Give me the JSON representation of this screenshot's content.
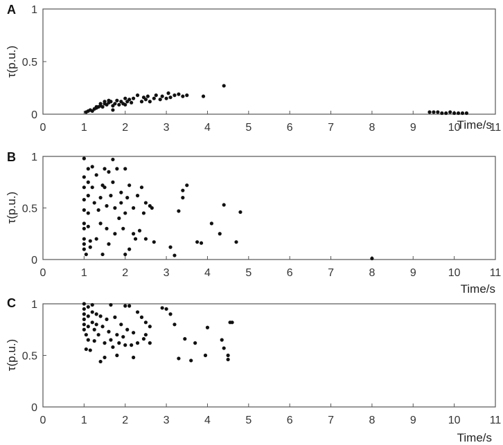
{
  "chart_data": [
    {
      "type": "scatter",
      "panel_label": "A",
      "ylabel": "τ(p.u.)",
      "xlabel": "Time/s",
      "xlim": [
        0,
        11
      ],
      "ylim": [
        0,
        1
      ],
      "xticks": [
        "0",
        "1",
        "2",
        "3",
        "4",
        "5",
        "6",
        "7",
        "8",
        "9",
        "10",
        "11"
      ],
      "yticks": [
        "0",
        "0.5",
        "1"
      ],
      "grid": false,
      "points": [
        [
          1.05,
          0.02
        ],
        [
          1.1,
          0.03
        ],
        [
          1.15,
          0.04
        ],
        [
          1.2,
          0.03
        ],
        [
          1.25,
          0.05
        ],
        [
          1.3,
          0.06
        ],
        [
          1.35,
          0.07
        ],
        [
          1.4,
          0.08
        ],
        [
          1.45,
          0.07
        ],
        [
          1.5,
          0.1
        ],
        [
          1.55,
          0.09
        ],
        [
          1.6,
          0.11
        ],
        [
          1.65,
          0.12
        ],
        [
          1.7,
          0.08
        ],
        [
          1.7,
          0.04
        ],
        [
          1.75,
          0.1
        ],
        [
          1.8,
          0.13
        ],
        [
          1.85,
          0.09
        ],
        [
          1.9,
          0.12
        ],
        [
          1.95,
          0.1
        ],
        [
          2.0,
          0.15
        ],
        [
          2.0,
          0.09
        ],
        [
          2.05,
          0.12
        ],
        [
          2.1,
          0.14
        ],
        [
          2.15,
          0.11
        ],
        [
          2.2,
          0.15
        ],
        [
          2.3,
          0.18
        ],
        [
          2.4,
          0.12
        ],
        [
          2.45,
          0.16
        ],
        [
          2.5,
          0.14
        ],
        [
          2.55,
          0.17
        ],
        [
          2.6,
          0.12
        ],
        [
          2.7,
          0.15
        ],
        [
          2.75,
          0.18
        ],
        [
          2.85,
          0.14
        ],
        [
          2.9,
          0.17
        ],
        [
          3.0,
          0.15
        ],
        [
          3.05,
          0.2
        ],
        [
          3.1,
          0.16
        ],
        [
          3.2,
          0.18
        ],
        [
          3.3,
          0.19
        ],
        [
          3.4,
          0.17
        ],
        [
          3.5,
          0.18
        ],
        [
          3.9,
          0.17
        ],
        [
          4.4,
          0.27
        ],
        [
          1.6,
          0.13
        ],
        [
          1.4,
          0.1
        ],
        [
          1.3,
          0.07
        ],
        [
          1.5,
          0.12
        ],
        [
          9.4,
          0.02
        ],
        [
          9.5,
          0.02
        ],
        [
          9.6,
          0.02
        ],
        [
          9.7,
          0.01
        ],
        [
          9.8,
          0.01
        ],
        [
          9.9,
          0.02
        ],
        [
          10.0,
          0.01
        ],
        [
          10.1,
          0.01
        ],
        [
          10.2,
          0.01
        ],
        [
          10.3,
          0.01
        ]
      ]
    },
    {
      "type": "scatter",
      "panel_label": "B",
      "ylabel": "τ(p.u.)",
      "xlabel": "Time/s",
      "xlim": [
        0,
        11
      ],
      "ylim": [
        0,
        1
      ],
      "xticks": [
        "0",
        "1",
        "2",
        "3",
        "4",
        "5",
        "6",
        "7",
        "8",
        "9",
        "10",
        "11"
      ],
      "yticks": [
        "0",
        "0.5",
        "1"
      ],
      "grid": false,
      "points": [
        [
          1.0,
          0.98
        ],
        [
          1.0,
          0.8
        ],
        [
          1.0,
          0.7
        ],
        [
          1.0,
          0.58
        ],
        [
          1.0,
          0.48
        ],
        [
          1.0,
          0.35
        ],
        [
          1.0,
          0.3
        ],
        [
          1.0,
          0.2
        ],
        [
          1.0,
          0.15
        ],
        [
          1.0,
          0.1
        ],
        [
          1.05,
          0.05
        ],
        [
          1.1,
          0.88
        ],
        [
          1.1,
          0.75
        ],
        [
          1.1,
          0.62
        ],
        [
          1.1,
          0.45
        ],
        [
          1.1,
          0.32
        ],
        [
          1.15,
          0.18
        ],
        [
          1.15,
          0.12
        ],
        [
          1.2,
          0.7
        ],
        [
          1.2,
          0.9
        ],
        [
          1.25,
          0.55
        ],
        [
          1.3,
          0.2
        ],
        [
          1.3,
          0.82
        ],
        [
          1.35,
          0.48
        ],
        [
          1.4,
          0.6
        ],
        [
          1.4,
          0.35
        ],
        [
          1.45,
          0.05
        ],
        [
          1.5,
          0.88
        ],
        [
          1.5,
          0.7
        ],
        [
          1.55,
          0.52
        ],
        [
          1.55,
          0.3
        ],
        [
          1.6,
          0.15
        ],
        [
          1.6,
          0.85
        ],
        [
          1.65,
          0.62
        ],
        [
          1.7,
          0.97
        ],
        [
          1.7,
          0.75
        ],
        [
          1.75,
          0.5
        ],
        [
          1.75,
          0.25
        ],
        [
          1.8,
          0.88
        ],
        [
          1.85,
          0.4
        ],
        [
          1.9,
          0.65
        ],
        [
          1.95,
          0.3
        ],
        [
          2.0,
          0.88
        ],
        [
          2.0,
          0.45
        ],
        [
          2.0,
          0.05
        ],
        [
          2.05,
          0.6
        ],
        [
          2.1,
          0.1
        ],
        [
          2.1,
          0.72
        ],
        [
          2.2,
          0.5
        ],
        [
          2.2,
          0.25
        ],
        [
          2.3,
          0.62
        ],
        [
          2.35,
          0.28
        ],
        [
          2.4,
          0.7
        ],
        [
          2.45,
          0.45
        ],
        [
          2.5,
          0.55
        ],
        [
          2.5,
          0.2
        ],
        [
          2.6,
          0.52
        ],
        [
          2.7,
          0.17
        ],
        [
          3.1,
          0.12
        ],
        [
          3.2,
          0.04
        ],
        [
          3.3,
          0.47
        ],
        [
          3.4,
          0.6
        ],
        [
          3.4,
          0.67
        ],
        [
          3.5,
          0.72
        ],
        [
          3.75,
          0.17
        ],
        [
          3.85,
          0.16
        ],
        [
          4.1,
          0.35
        ],
        [
          4.3,
          0.25
        ],
        [
          4.4,
          0.53
        ],
        [
          4.7,
          0.17
        ],
        [
          4.8,
          0.46
        ],
        [
          2.65,
          0.5
        ],
        [
          1.9,
          0.55
        ],
        [
          2.25,
          0.2
        ],
        [
          1.45,
          0.72
        ],
        [
          8.0,
          0.01
        ]
      ]
    },
    {
      "type": "scatter",
      "panel_label": "C",
      "ylabel": "τ(p.u.)",
      "xlabel": "Time/s",
      "xlim": [
        0,
        11
      ],
      "ylim": [
        0,
        1
      ],
      "xticks": [
        "0",
        "1",
        "2",
        "3",
        "4",
        "5",
        "6",
        "7",
        "8",
        "9",
        "10",
        "11"
      ],
      "yticks": [
        "0",
        "0.5",
        "1"
      ],
      "grid": false,
      "points": [
        [
          1.0,
          1.0
        ],
        [
          1.0,
          0.95
        ],
        [
          1.0,
          0.9
        ],
        [
          1.0,
          0.85
        ],
        [
          1.0,
          0.8
        ],
        [
          1.0,
          0.75
        ],
        [
          1.05,
          0.7
        ],
        [
          1.05,
          0.56
        ],
        [
          1.1,
          0.97
        ],
        [
          1.1,
          0.88
        ],
        [
          1.1,
          0.78
        ],
        [
          1.1,
          0.65
        ],
        [
          1.15,
          0.55
        ],
        [
          1.2,
          0.99
        ],
        [
          1.2,
          0.92
        ],
        [
          1.2,
          0.82
        ],
        [
          1.25,
          0.75
        ],
        [
          1.25,
          0.64
        ],
        [
          1.3,
          0.9
        ],
        [
          1.3,
          0.8
        ],
        [
          1.35,
          0.7
        ],
        [
          1.4,
          0.88
        ],
        [
          1.4,
          0.44
        ],
        [
          1.45,
          0.78
        ],
        [
          1.5,
          0.62
        ],
        [
          1.5,
          0.48
        ],
        [
          1.55,
          0.85
        ],
        [
          1.6,
          0.73
        ],
        [
          1.65,
          0.99
        ],
        [
          1.65,
          0.65
        ],
        [
          1.7,
          0.58
        ],
        [
          1.75,
          0.87
        ],
        [
          1.8,
          0.7
        ],
        [
          1.8,
          0.5
        ],
        [
          1.85,
          0.62
        ],
        [
          1.9,
          0.8
        ],
        [
          1.95,
          0.68
        ],
        [
          2.0,
          0.98
        ],
        [
          2.0,
          0.6
        ],
        [
          2.05,
          0.75
        ],
        [
          2.1,
          0.98
        ],
        [
          2.15,
          0.6
        ],
        [
          2.2,
          0.72
        ],
        [
          2.2,
          0.48
        ],
        [
          2.3,
          0.92
        ],
        [
          2.3,
          0.62
        ],
        [
          2.4,
          0.87
        ],
        [
          2.45,
          0.66
        ],
        [
          2.5,
          0.82
        ],
        [
          2.5,
          0.7
        ],
        [
          2.6,
          0.78
        ],
        [
          2.6,
          0.62
        ],
        [
          2.9,
          0.96
        ],
        [
          3.0,
          0.95
        ],
        [
          3.1,
          0.9
        ],
        [
          3.2,
          0.8
        ],
        [
          3.3,
          0.47
        ],
        [
          3.45,
          0.66
        ],
        [
          3.6,
          0.45
        ],
        [
          3.7,
          0.62
        ],
        [
          3.95,
          0.5
        ],
        [
          4.0,
          0.77
        ],
        [
          4.35,
          0.65
        ],
        [
          4.4,
          0.57
        ],
        [
          4.5,
          0.5
        ],
        [
          4.55,
          0.82
        ],
        [
          4.6,
          0.82
        ],
        [
          4.5,
          0.46
        ]
      ]
    }
  ]
}
